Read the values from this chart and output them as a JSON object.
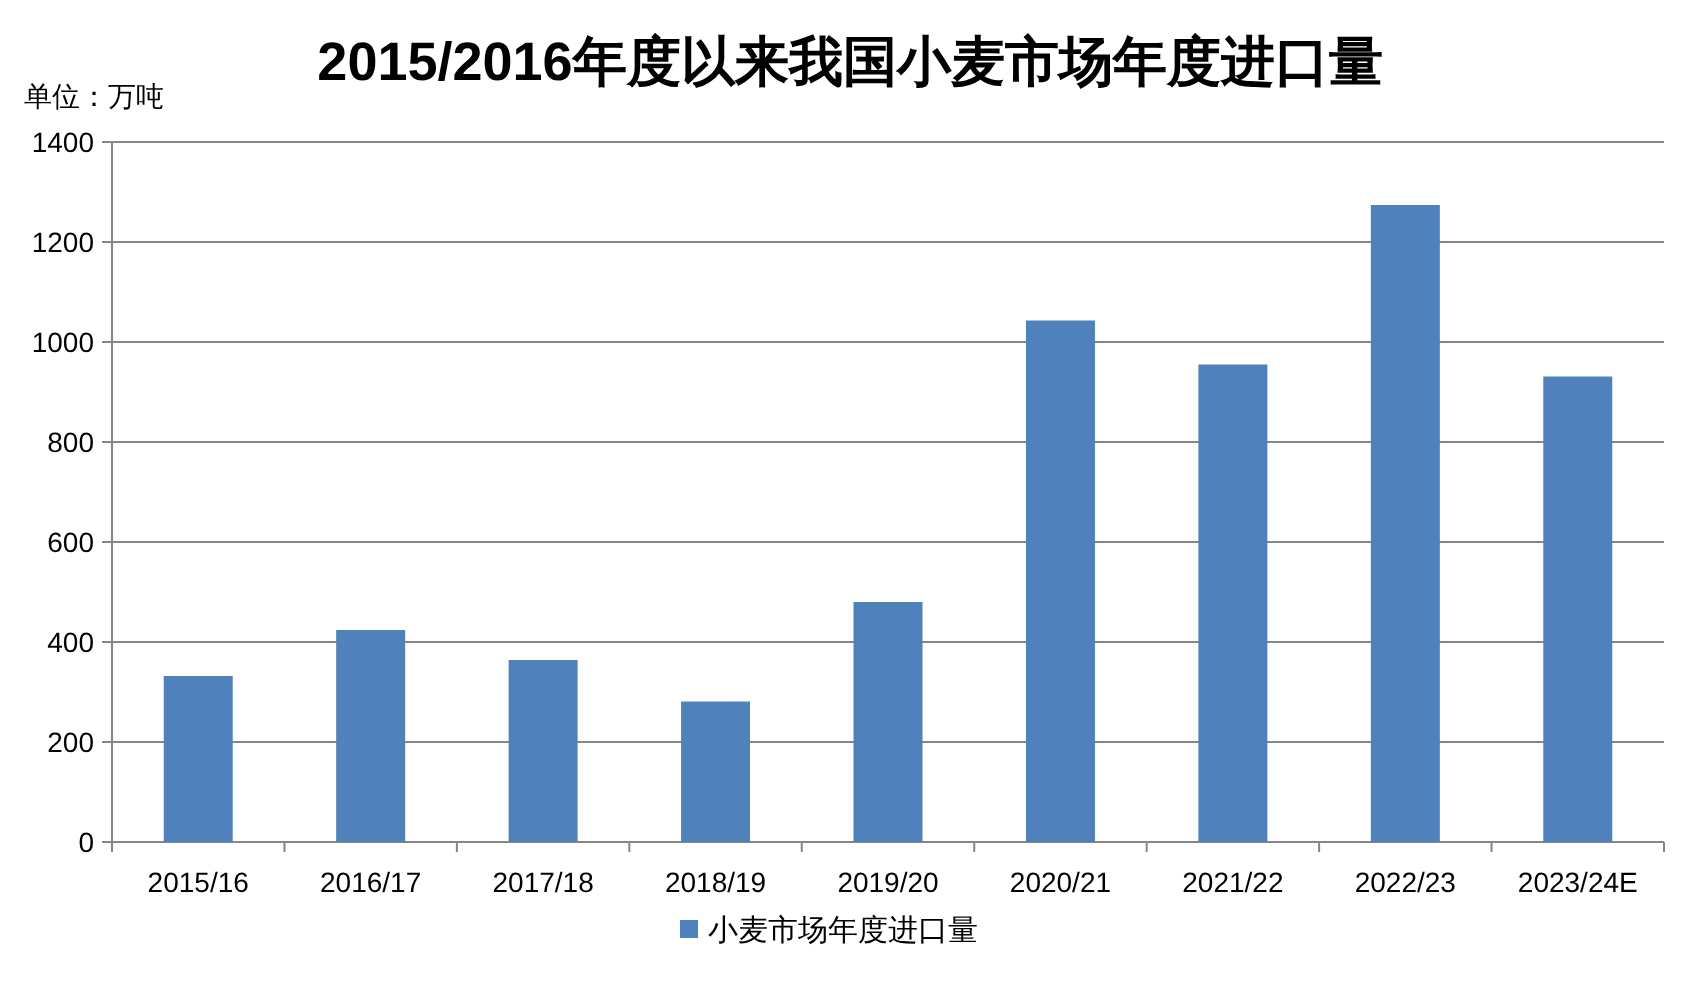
{
  "chart_data": {
    "type": "bar",
    "title": "2015/2016年度以来我国小麦市场年度进口量",
    "ylabel": "单位：万吨",
    "categories": [
      "2015/16",
      "2016/17",
      "2017/18",
      "2018/19",
      "2019/20",
      "2020/21",
      "2021/22",
      "2022/23",
      "2023/24E"
    ],
    "series": [
      {
        "name": "小麦市场年度进口量",
        "color": "#4f81bd",
        "values": [
          332,
          424,
          364,
          281,
          480,
          1043,
          955,
          1274,
          931
        ]
      }
    ],
    "ylim": [
      0,
      1400
    ],
    "yticks": [
      0,
      200,
      400,
      600,
      800,
      1000,
      1200,
      1400
    ],
    "grid": "y",
    "legend": "bottom"
  }
}
